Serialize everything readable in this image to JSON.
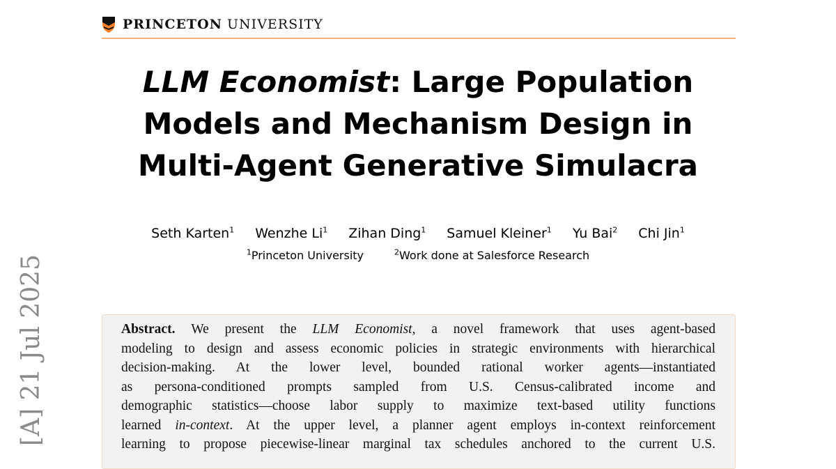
{
  "header": {
    "logo_bold": "PRINCETON",
    "logo_regular": "UNIVERSITY",
    "accent_color": "#f58025"
  },
  "title": {
    "italic_part": "LLM Economist",
    "line1_rest": ": Large Population",
    "line2": "Models and Mechanism Design in",
    "line3": "Multi-Agent Generative Simulacra"
  },
  "authors": [
    {
      "name": "Seth Karten",
      "aff": "1"
    },
    {
      "name": "Wenzhe Li",
      "aff": "1"
    },
    {
      "name": "Zihan Ding",
      "aff": "1"
    },
    {
      "name": "Samuel Kleiner",
      "aff": "1"
    },
    {
      "name": "Yu Bai",
      "aff": "2"
    },
    {
      "name": "Chi Jin",
      "aff": "1"
    }
  ],
  "affiliations": [
    {
      "mark": "1",
      "name": "Princeton University"
    },
    {
      "mark": "2",
      "name": "Work done at Salesforce Research"
    }
  ],
  "arxiv_stamp": "[A]  21 Jul 2025",
  "abstract": {
    "label": "Abstract.",
    "lines": [
      "We present the |LLM Economist|, a novel framework that uses agent-based",
      "modeling to design and assess economic policies in strategic environments with hierarchical",
      "decision-making.  At the lower level, bounded rational worker agents—instantiated",
      "as persona-conditioned prompts sampled from U.S. Census-calibrated income and",
      "demographic statistics—choose labor supply to maximize text-based utility functions",
      "learned |in-context|. At the upper level, a planner agent employs in-context reinforcement",
      "learning to propose piecewise-linear marginal tax schedules anchored to the current U.S."
    ]
  }
}
